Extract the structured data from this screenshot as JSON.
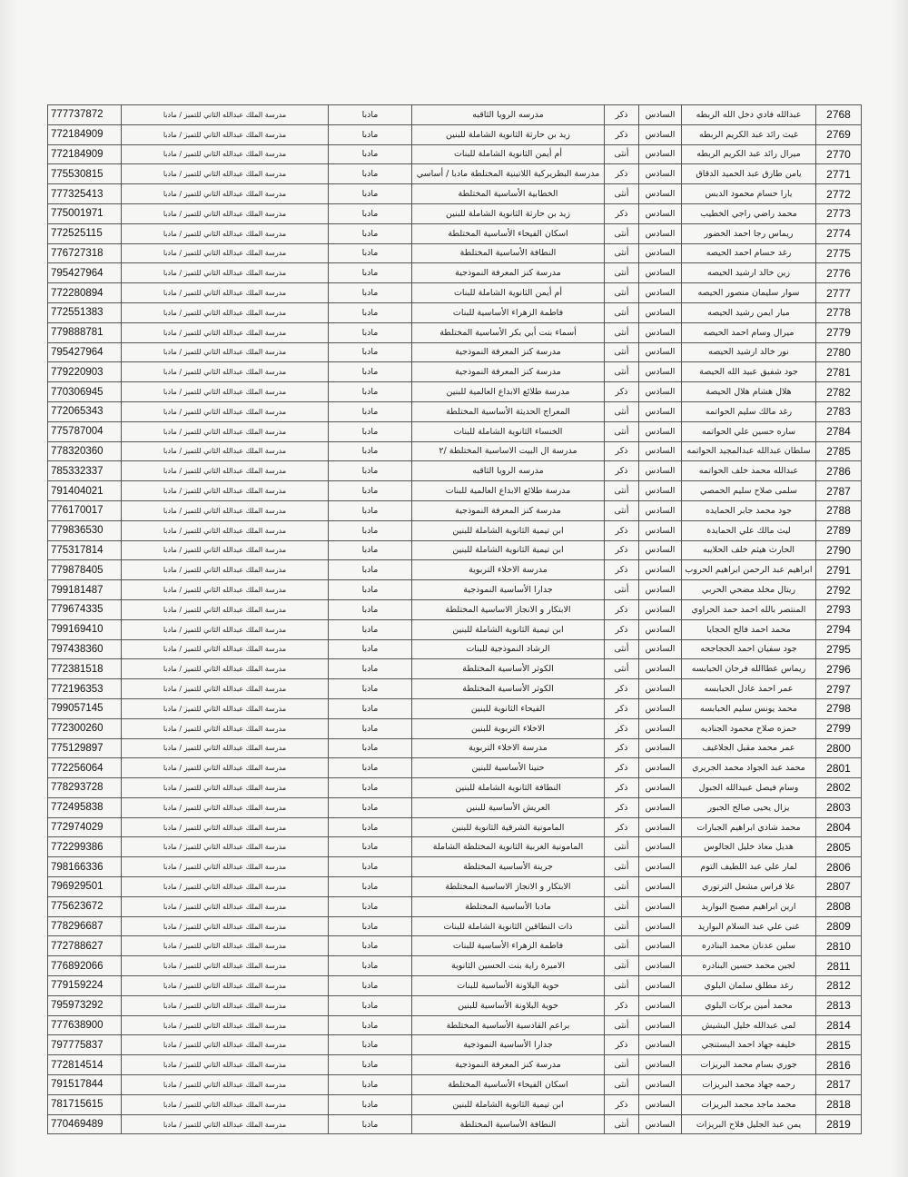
{
  "constants": {
    "grade": "السادس",
    "district": "مادبا",
    "center": "مدرسة الملك عبدالله الثاني للتميز / مادبا"
  },
  "rows": [
    [
      "2768",
      "عبدالله فادي دخل الله الربطه",
      "ذكر",
      "مدرسه الرويا الثاقبه",
      "777737872"
    ],
    [
      "2769",
      "غيث رائد عبد الكريم الربطه",
      "ذكر",
      "زيد بن حارثة الثانوية الشاملة للبنين",
      "772184909"
    ],
    [
      "2770",
      "ميرال رائد عبد الكريم الربطه",
      "أنثى",
      "أم أيمن الثانوية الشاملة للبنات",
      "772184909"
    ],
    [
      "2771",
      "يامن طارق عبد الحميد الدقاق",
      "ذكر",
      "مدرسة البطريركية اللاتينية المختلطة مادبا / أساسي",
      "775530815"
    ],
    [
      "2772",
      "يارا حسام محمود الدبس",
      "أنثى",
      "الخطابية الأساسية المختلطة",
      "777325413"
    ],
    [
      "2773",
      "محمد راضي راجي الخطيب",
      "ذكر",
      "زيد بن حارثة الثانوية الشاملة للبنين",
      "775001971"
    ],
    [
      "2774",
      "ريماس رجا احمد الخضور",
      "أنثى",
      "اسكان الفيحاء الأساسية المختلطة",
      "772525115"
    ],
    [
      "2775",
      "رغد حسام احمد الحيصه",
      "أنثى",
      "النطافة الأساسية المختلطة",
      "776727318"
    ],
    [
      "2776",
      "زين خالد ارشيد الحيصه",
      "أنثى",
      "مدرسة كنز المعرفة النموذجية",
      "795427964"
    ],
    [
      "2777",
      "سوار سليمان منصور الحيصه",
      "أنثى",
      "أم أيمن الثانوية الشاملة للبنات",
      "772280894"
    ],
    [
      "2778",
      "ميار ايمن رشيد الحيصه",
      "أنثى",
      "فاطمة الزهراء الأساسية للبنات",
      "772551383"
    ],
    [
      "2779",
      "ميرال وسام احمد الحيصه",
      "أنثى",
      "أسماء بنت أبي بكر الأساسية المختلطة",
      "779888781"
    ],
    [
      "2780",
      "نور خالد ارشيد الحيصه",
      "أنثى",
      "مدرسة كنز المعرفة النموذجية",
      "795427964"
    ],
    [
      "2781",
      "جود شفيق عبيد الله الحيصة",
      "أنثى",
      "مدرسة كنز المعرفة النموذجية",
      "779220903"
    ],
    [
      "2782",
      "هلال هشام هلال الحيصة",
      "ذكر",
      "مدرسة طلائع الابداع العالمية للبنين",
      "770306945"
    ],
    [
      "2783",
      "رغد مالك سليم الحواتمه",
      "أنثى",
      "المعراج الحديثة الأساسية المختلطة",
      "772065343"
    ],
    [
      "2784",
      "ساره حسين علي الحواتمه",
      "أنثى",
      "الخنساء الثانوية الشاملة للبنات",
      "775787004"
    ],
    [
      "2785",
      "سلطان عبدالله عبدالمجيد الحواتمه",
      "ذكر",
      "مدرسة ال البيت الاساسية المختلطة /٢",
      "778320360"
    ],
    [
      "2786",
      "عبدالله محمد خلف الحواتمه",
      "ذكر",
      "مدرسه الرويا الثاقبه",
      "785332337"
    ],
    [
      "2787",
      "سلمى صلاح سليم الحمصي",
      "أنثى",
      "مدرسة طلائع الابداع العالمية للبنات",
      "791404021"
    ],
    [
      "2788",
      "جود محمد جابر الحمايده",
      "أنثى",
      "مدرسة كنز المعرفة النموذجية",
      "776170017"
    ],
    [
      "2789",
      "ليث مالك علي الحمايدة",
      "ذكر",
      "ابن تيمية الثانوية الشاملة للبنين",
      "779836530"
    ],
    [
      "2790",
      "الحارث هيثم خلف الحلايبه",
      "ذكر",
      "ابن تيمية الثانوية الشاملة للبنين",
      "775317814"
    ],
    [
      "2791",
      "ابراهيم عبد الرحمن ابراهيم الحروب",
      "ذكر",
      "مدرسة الاخلاء التربوية",
      "779878405"
    ],
    [
      "2792",
      "ريتال مخلد مضحي الحربي",
      "أنثى",
      "جدارا الأساسية النموذجية",
      "799181487"
    ],
    [
      "2793",
      "المنتصر بالله احمد حمد الحراوي",
      "ذكر",
      "الابتكار و الانجاز الاساسية المختلطة",
      "779674335"
    ],
    [
      "2794",
      "محمد احمد فالح الحجايا",
      "ذكر",
      "ابن تيمية الثانوية الشاملة للبنين",
      "799169410"
    ],
    [
      "2795",
      "جود سفيان احمد الحجاجحه",
      "أنثى",
      "الرشاد النموذجية للبنات",
      "797438360"
    ],
    [
      "2796",
      "ريماس عطاالله فرحان الحبابسه",
      "أنثى",
      "الكوثر الأساسية المختلطة",
      "772381518"
    ],
    [
      "2797",
      "عمر احمد عادل الحبابسه",
      "ذكر",
      "الكوثر الأساسية المختلطة",
      "772196353"
    ],
    [
      "2798",
      "محمد يونس سليم الحبابسه",
      "ذكر",
      "الفيحاء الثانوية للبنين",
      "799057145"
    ],
    [
      "2799",
      "حمزه صلاح محمود الجناديه",
      "ذكر",
      "الاخلاء التربوية للبنين",
      "772300260"
    ],
    [
      "2800",
      "عمر محمد مقبل الجلاغيف",
      "ذكر",
      "مدرسة الاخلاء التربوية",
      "775129897"
    ],
    [
      "2801",
      "محمد عبد الجواد محمد الجريري",
      "ذكر",
      "حنينا الأساسية للبنين",
      "772256064"
    ],
    [
      "2802",
      "وسام فيصل عبيدالله الجبول",
      "ذكر",
      "النطافة الثانوية الشاملة للبنين",
      "778293728"
    ],
    [
      "2803",
      "يزال يحيى صالح الجبور",
      "ذكر",
      "العريش الأساسية للبنين",
      "772495838"
    ],
    [
      "2804",
      "محمد شادي ابراهيم الجبارات",
      "ذكر",
      "المامونية الشرقية الثانوية للبنين",
      "772974029"
    ],
    [
      "2805",
      "هديل معاذ خليل الجالوس",
      "أنثى",
      "المامونية الغربية الثانوية المختلطة الشاملة",
      "772299386"
    ],
    [
      "2806",
      "لمار علي عبد اللطيف التوم",
      "أنثى",
      "جرينة الأساسية المختلطة",
      "798166336"
    ],
    [
      "2807",
      "علا فراس مشعل الترتوري",
      "أنثى",
      "الابتكار و الانجاز الاساسية المختلطة",
      "796929501"
    ],
    [
      "2808",
      "ارين ابراهيم مصبح البواريد",
      "أنثى",
      "مادبا الأساسية المختلطة",
      "775623672"
    ],
    [
      "2809",
      "غنى علي عبد السلام البواريد",
      "أنثى",
      "ذات النطاقين الثانوية الشاملة للبنات",
      "778296687"
    ],
    [
      "2810",
      "سلين عدنان محمد البنادره",
      "أنثى",
      "فاطمة الزهراء الأساسية للبنات",
      "772788627"
    ],
    [
      "2811",
      "لجين محمد حسين البنادره",
      "أنثى",
      "الاميرة راية بنت الحسين الثانوية",
      "776892066"
    ],
    [
      "2812",
      "رغد مطلق سلمان البلوي",
      "أنثى",
      "حوية البلاونة الأساسية للبنات",
      "779159224"
    ],
    [
      "2813",
      "محمد أمين بركات البلوي",
      "ذكر",
      "حوية البلاونة الأساسية للبنين",
      "795973292"
    ],
    [
      "2814",
      "لمى عبدالله خليل البشيش",
      "أنثى",
      "براعم القادسية الأساسية المختلطة",
      "777638900"
    ],
    [
      "2815",
      "خليفه جهاد احمد البستنجي",
      "ذكر",
      "جدارا الأساسية النموذجية",
      "797775837"
    ],
    [
      "2816",
      "جوري بسام محمد البريزات",
      "أنثى",
      "مدرسة كنز المعرفة النموذجية",
      "772814514"
    ],
    [
      "2817",
      "رحمه جهاد محمد البريزات",
      "أنثى",
      "اسكان الفيحاء الأساسية المختلطة",
      "791517844"
    ],
    [
      "2818",
      "محمد ماجد محمد البريزات",
      "ذكر",
      "ابن تيمية الثانوية الشاملة للبنين",
      "781715615"
    ],
    [
      "2819",
      "يمن عبد الجليل فلاح البريزات",
      "أنثى",
      "النطافة الأساسية المختلطة",
      "770469489"
    ]
  ]
}
